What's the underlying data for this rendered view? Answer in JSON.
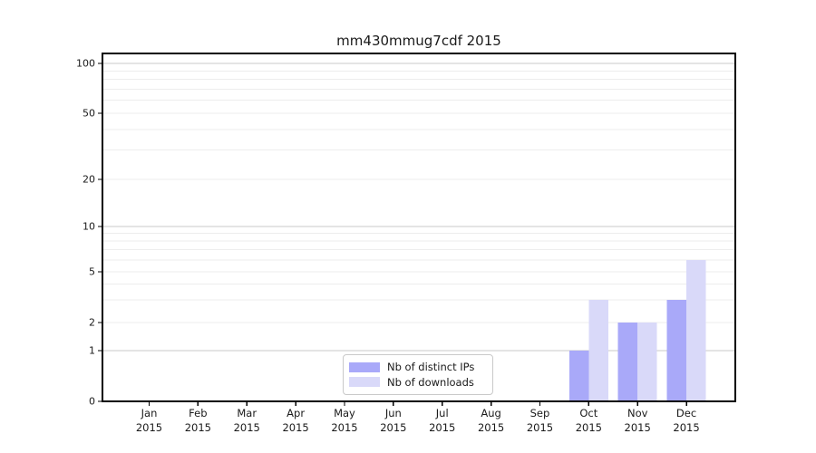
{
  "chart_data": {
    "type": "bar",
    "title": "mm430mmug7cdf 2015",
    "year": "2015",
    "categories": [
      "Jan",
      "Feb",
      "Mar",
      "Apr",
      "May",
      "Jun",
      "Jul",
      "Aug",
      "Sep",
      "Oct",
      "Nov",
      "Dec"
    ],
    "series": [
      {
        "name": "Nb of distinct IPs",
        "color": "#a9a9f9",
        "values": [
          0,
          0,
          0,
          0,
          0,
          0,
          0,
          0,
          0,
          1,
          2,
          3
        ]
      },
      {
        "name": "Nb of downloads",
        "color": "#d9d9f9",
        "values": [
          0,
          0,
          0,
          0,
          0,
          0,
          0,
          0,
          0,
          3,
          2,
          6
        ]
      }
    ],
    "yticks": [
      0,
      1,
      2,
      5,
      10,
      20,
      50,
      100
    ],
    "ylim": [
      0,
      115
    ],
    "yscale": "log above 1, linear 0-1 (symlog-like)",
    "grid": true,
    "major_grid_values": [
      1,
      10,
      100
    ],
    "minor_grid_values": [
      2,
      3,
      4,
      5,
      6,
      7,
      8,
      9,
      20,
      30,
      40,
      50,
      60,
      70,
      80,
      90
    ],
    "legend_position": "bottom-center",
    "colors": {
      "bar_distinct_ips": "#a9a9f9",
      "bar_downloads": "#d9d9f9",
      "major_gridline": "#c8c8c8",
      "minor_gridline": "#ededed",
      "axis": "#000000",
      "text": "#1a1a1a",
      "legend_border": "#c9c9c9",
      "background": "#ffffff"
    }
  }
}
